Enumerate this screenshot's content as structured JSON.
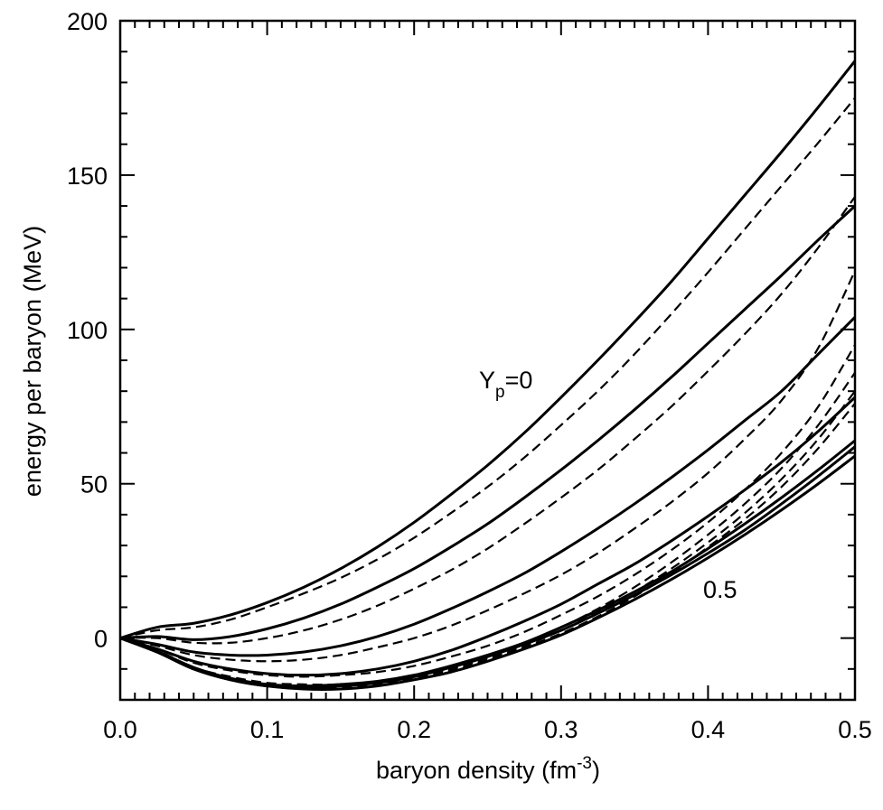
{
  "chart_data": {
    "type": "line",
    "title": "",
    "xlabel": "baryon density (fm",
    "xlabel_sup": "-3",
    "xlabel_close": ")",
    "ylabel": "energy per baryon (MeV)",
    "xlim": [
      0.0,
      0.5
    ],
    "ylim": [
      -20,
      200
    ],
    "x_ticks": [
      "0.0",
      "0.1",
      "0.2",
      "0.3",
      "0.4",
      "0.5"
    ],
    "y_ticks": [
      "0",
      "50",
      "100",
      "150",
      "200"
    ],
    "grid": false,
    "legend": "none",
    "annotations": {
      "top_label_main": "Y",
      "top_label_sub": "p",
      "top_label_rest": "=0",
      "bottom_label": "0.5"
    },
    "x": [
      0.0,
      0.025,
      0.05,
      0.075,
      0.1,
      0.125,
      0.15,
      0.175,
      0.2,
      0.225,
      0.25,
      0.275,
      0.3,
      0.325,
      0.35,
      0.375,
      0.4,
      0.425,
      0.45,
      0.475,
      0.5
    ],
    "series": [
      {
        "style": "solid",
        "values": [
          0,
          3.5,
          4.8,
          7.5,
          11.5,
          16.5,
          22.5,
          29.5,
          37.5,
          46.5,
          56,
          66.5,
          78,
          90,
          102.5,
          115.5,
          129.5,
          143.5,
          157.5,
          172,
          187
        ]
      },
      {
        "style": "solid",
        "values": [
          0,
          0.5,
          -0.5,
          0.5,
          3,
          6.5,
          11,
          16.5,
          22.5,
          29.5,
          37,
          45.5,
          54.5,
          64,
          74,
          84.5,
          95.5,
          106.5,
          117.5,
          129,
          140
        ]
      },
      {
        "style": "solid",
        "values": [
          0,
          -2,
          -4.5,
          -5.5,
          -5.5,
          -4.5,
          -2.5,
          0.5,
          4.5,
          9.5,
          15,
          21,
          28,
          35.5,
          43.5,
          52,
          61,
          70.5,
          80,
          92,
          104
        ]
      },
      {
        "style": "solid",
        "values": [
          0,
          -3.5,
          -7.5,
          -10,
          -11.5,
          -12,
          -11.5,
          -10,
          -7.5,
          -4,
          0.5,
          5.5,
          11,
          17.5,
          24,
          31.5,
          39.5,
          48,
          57,
          67,
          78
        ]
      },
      {
        "style": "solid",
        "values": [
          0,
          -4.5,
          -10,
          -13.5,
          -15.5,
          -16.5,
          -16.5,
          -15.5,
          -13.5,
          -11,
          -7.5,
          -3.5,
          1,
          6.5,
          12.5,
          19,
          26,
          33.5,
          41.5,
          50,
          59
        ]
      },
      {
        "style": "solid",
        "values": [
          0,
          -4.5,
          -10,
          -13.5,
          -15.5,
          -16,
          -15.5,
          -14.5,
          -12.5,
          -9.5,
          -6,
          -2,
          2.5,
          8,
          14,
          20.5,
          27.5,
          35,
          43.5,
          52.5,
          62
        ]
      },
      {
        "style": "solid",
        "values": [
          0,
          -4.3,
          -9.5,
          -13,
          -15,
          -15.5,
          -15,
          -14,
          -12,
          -9,
          -5.5,
          -1.5,
          3.5,
          9,
          15,
          21.5,
          29,
          37,
          45.5,
          54.5,
          64
        ]
      },
      {
        "style": "dashed",
        "values": [
          0,
          2.5,
          3.5,
          6,
          10,
          14.5,
          19.5,
          25.5,
          32.5,
          40.5,
          49,
          58.5,
          69,
          80,
          92,
          105,
          118.5,
          132.5,
          146.5,
          160.5,
          175
        ]
      },
      {
        "style": "dashed",
        "values": [
          0,
          0,
          -1.5,
          -1.5,
          0,
          2.5,
          6,
          10.5,
          16,
          22,
          29,
          37,
          45.5,
          54.5,
          64.5,
          75,
          86.5,
          98.5,
          111.5,
          126.5,
          143
        ]
      },
      {
        "style": "dashed",
        "values": [
          0,
          -2.5,
          -5.5,
          -7,
          -7.5,
          -7,
          -5.5,
          -3,
          0,
          4,
          9,
          14.5,
          20.5,
          27.5,
          35.5,
          44,
          53.5,
          64.5,
          77,
          94,
          119
        ]
      },
      {
        "style": "dashed",
        "values": [
          0,
          -3.5,
          -8,
          -10.5,
          -12,
          -12.5,
          -12,
          -11,
          -9,
          -6,
          -2.5,
          2,
          7.5,
          13.5,
          20.5,
          28.5,
          37.5,
          48,
          60,
          75,
          95
        ]
      },
      {
        "style": "dashed",
        "values": [
          0,
          -4,
          -9.5,
          -12.5,
          -14.5,
          -15,
          -15,
          -14,
          -12,
          -9.5,
          -6,
          -1.5,
          3.5,
          9.5,
          16.5,
          24.5,
          33.5,
          43.5,
          55,
          69,
          86
        ]
      },
      {
        "style": "dashed",
        "values": [
          0,
          -4.5,
          -10,
          -13.5,
          -15.5,
          -16,
          -15.5,
          -14.5,
          -12.5,
          -10,
          -6.5,
          -2.5,
          2.5,
          8.5,
          15,
          22.5,
          31,
          40.5,
          51.5,
          64.5,
          80
        ]
      },
      {
        "style": "dashed",
        "values": [
          0,
          -4.5,
          -10,
          -13.5,
          -15.5,
          -16.5,
          -16,
          -15,
          -13,
          -10.5,
          -7,
          -3,
          1.5,
          7,
          13.5,
          21,
          29.5,
          38.5,
          49,
          61.5,
          76
        ]
      }
    ]
  }
}
